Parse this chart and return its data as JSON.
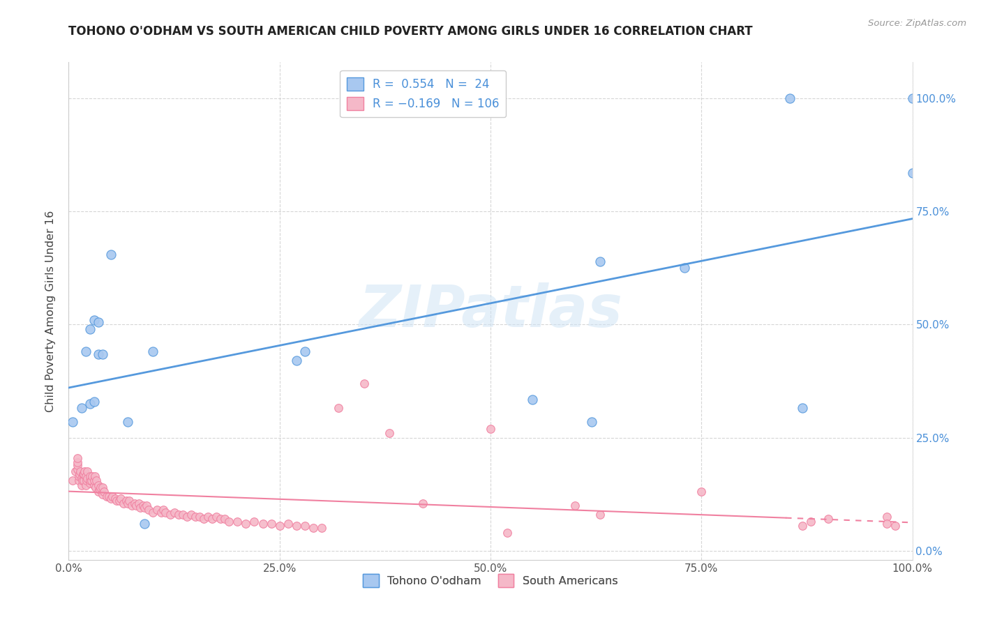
{
  "title": "TOHONO O'ODHAM VS SOUTH AMERICAN CHILD POVERTY AMONG GIRLS UNDER 16 CORRELATION CHART",
  "source": "Source: ZipAtlas.com",
  "ylabel": "Child Poverty Among Girls Under 16",
  "xlim": [
    0.0,
    1.0
  ],
  "ylim": [
    -0.02,
    1.08
  ],
  "xticks": [
    0.0,
    0.25,
    0.5,
    0.75,
    1.0
  ],
  "xticklabels": [
    "0.0%",
    "25.0%",
    "50.0%",
    "75.0%",
    "100.0%"
  ],
  "yticks": [
    0.0,
    0.25,
    0.5,
    0.75,
    1.0
  ],
  "yticklabels_right": [
    "0.0%",
    "25.0%",
    "50.0%",
    "75.0%",
    "100.0%"
  ],
  "blue_color": "#a8c8f0",
  "pink_color": "#f5b8c8",
  "blue_line_color": "#5599dd",
  "pink_line_color": "#f080a0",
  "blue_edge_color": "#5599dd",
  "pink_edge_color": "#f080a0",
  "tohono_label": "Tohono O'odham",
  "south_label": "South Americans",
  "watermark": "ZIPatlas",
  "blue_points_x": [
    0.005,
    0.015,
    0.02,
    0.025,
    0.025,
    0.03,
    0.03,
    0.035,
    0.035,
    0.04,
    0.05,
    0.07,
    0.09,
    0.1,
    0.27,
    0.28,
    0.55,
    0.62,
    0.63,
    0.73,
    0.855,
    0.87,
    1.0,
    1.0
  ],
  "blue_points_y": [
    0.285,
    0.315,
    0.44,
    0.49,
    0.325,
    0.33,
    0.51,
    0.505,
    0.435,
    0.435,
    0.655,
    0.285,
    0.06,
    0.44,
    0.42,
    0.44,
    0.335,
    0.285,
    0.64,
    0.625,
    1.0,
    0.315,
    1.0,
    0.835
  ],
  "pink_points_x": [
    0.005,
    0.008,
    0.01,
    0.01,
    0.01,
    0.01,
    0.012,
    0.012,
    0.013,
    0.014,
    0.015,
    0.015,
    0.016,
    0.017,
    0.018,
    0.018,
    0.019,
    0.02,
    0.02,
    0.021,
    0.022,
    0.022,
    0.025,
    0.025,
    0.025,
    0.027,
    0.028,
    0.03,
    0.03,
    0.031,
    0.032,
    0.033,
    0.035,
    0.035,
    0.037,
    0.038,
    0.04,
    0.04,
    0.042,
    0.045,
    0.048,
    0.05,
    0.052,
    0.055,
    0.057,
    0.06,
    0.062,
    0.065,
    0.068,
    0.07,
    0.072,
    0.075,
    0.078,
    0.08,
    0.083,
    0.085,
    0.088,
    0.09,
    0.092,
    0.095,
    0.1,
    0.105,
    0.11,
    0.112,
    0.115,
    0.12,
    0.125,
    0.13,
    0.135,
    0.14,
    0.145,
    0.15,
    0.155,
    0.16,
    0.165,
    0.17,
    0.175,
    0.18,
    0.185,
    0.19,
    0.2,
    0.21,
    0.22,
    0.23,
    0.24,
    0.25,
    0.26,
    0.27,
    0.28,
    0.29,
    0.3,
    0.32,
    0.35,
    0.38,
    0.42,
    0.5,
    0.52,
    0.6,
    0.63,
    0.75,
    0.87,
    0.88,
    0.9,
    0.97,
    0.97,
    0.98
  ],
  "pink_points_y": [
    0.155,
    0.175,
    0.18,
    0.19,
    0.195,
    0.205,
    0.155,
    0.165,
    0.17,
    0.175,
    0.145,
    0.16,
    0.155,
    0.17,
    0.155,
    0.17,
    0.175,
    0.145,
    0.165,
    0.155,
    0.16,
    0.175,
    0.15,
    0.155,
    0.165,
    0.155,
    0.165,
    0.145,
    0.155,
    0.165,
    0.14,
    0.155,
    0.13,
    0.145,
    0.135,
    0.14,
    0.125,
    0.14,
    0.13,
    0.12,
    0.12,
    0.115,
    0.12,
    0.115,
    0.11,
    0.11,
    0.115,
    0.105,
    0.11,
    0.105,
    0.11,
    0.1,
    0.105,
    0.1,
    0.105,
    0.095,
    0.1,
    0.095,
    0.1,
    0.09,
    0.085,
    0.09,
    0.085,
    0.09,
    0.085,
    0.08,
    0.085,
    0.08,
    0.08,
    0.075,
    0.08,
    0.075,
    0.075,
    0.07,
    0.075,
    0.07,
    0.075,
    0.07,
    0.07,
    0.065,
    0.065,
    0.06,
    0.065,
    0.06,
    0.06,
    0.055,
    0.06,
    0.055,
    0.055,
    0.05,
    0.05,
    0.315,
    0.37,
    0.26,
    0.105,
    0.27,
    0.04,
    0.1,
    0.08,
    0.13,
    0.055,
    0.065,
    0.07,
    0.075,
    0.06,
    0.055
  ]
}
